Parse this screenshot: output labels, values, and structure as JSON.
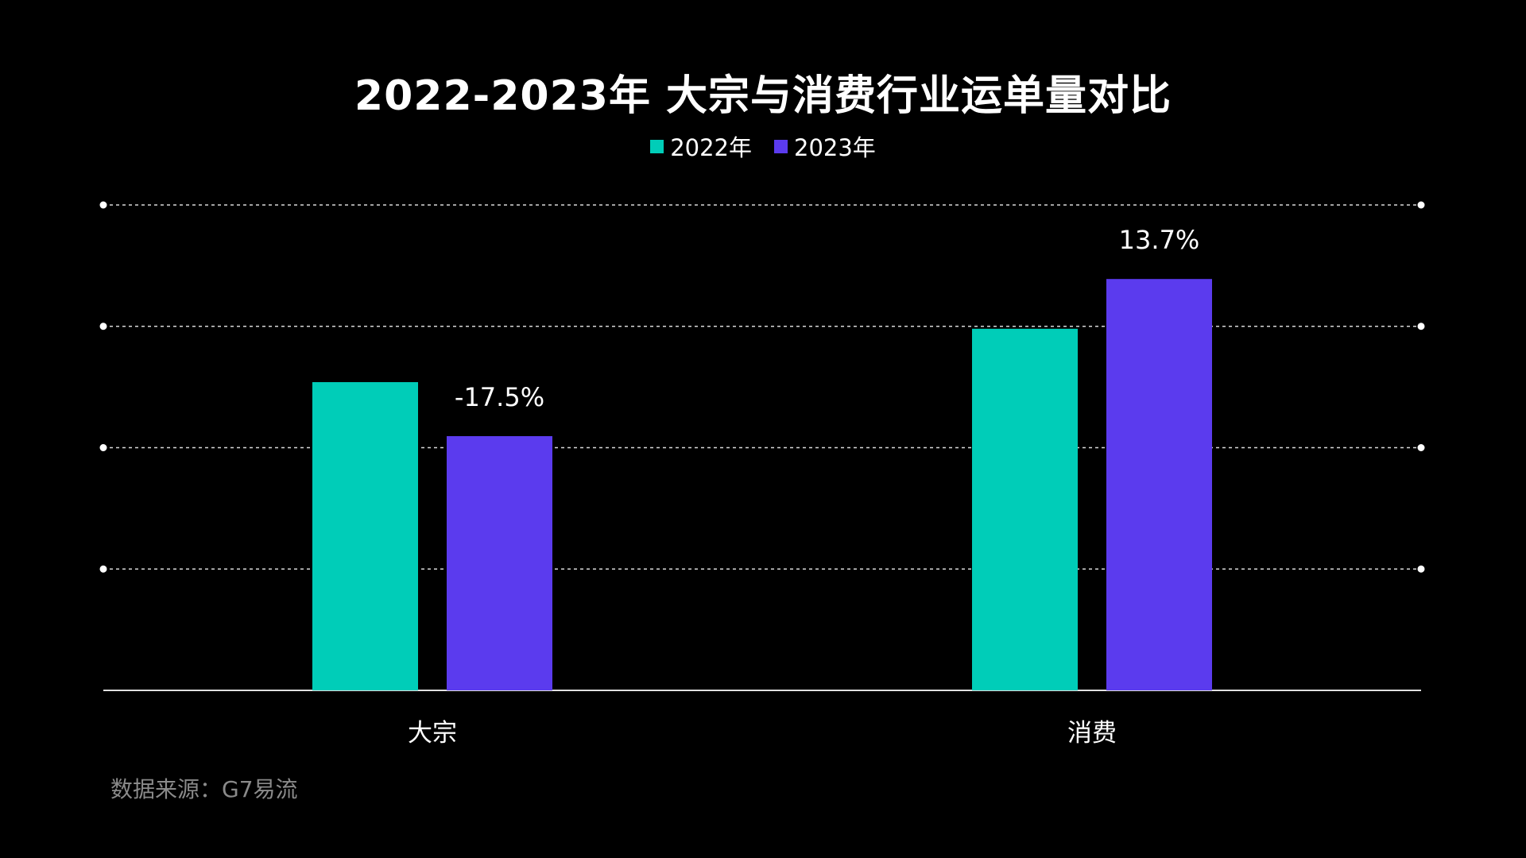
{
  "chart_data": {
    "type": "bar",
    "title": "2022-2023年 大宗与消费行业运单量对比",
    "categories": [
      "大宗",
      "消费"
    ],
    "series": [
      {
        "name": "2022年",
        "color": "#00CDB8",
        "values": [
          2.54,
          2.98
        ]
      },
      {
        "name": "2023年",
        "color": "#5B3BEE",
        "values": [
          2.095,
          3.39
        ]
      }
    ],
    "data_labels": [
      {
        "category": "大宗",
        "series": "2023年",
        "text": "-17.5%"
      },
      {
        "category": "消费",
        "series": "2023年",
        "text": "13.7%"
      }
    ],
    "ylim": [
      0,
      4
    ],
    "gridlines": [
      1,
      2,
      3,
      4
    ],
    "grid": true,
    "legend": "top-center",
    "xlabel": "",
    "ylabel": ""
  },
  "source": "数据来源：G7易流"
}
